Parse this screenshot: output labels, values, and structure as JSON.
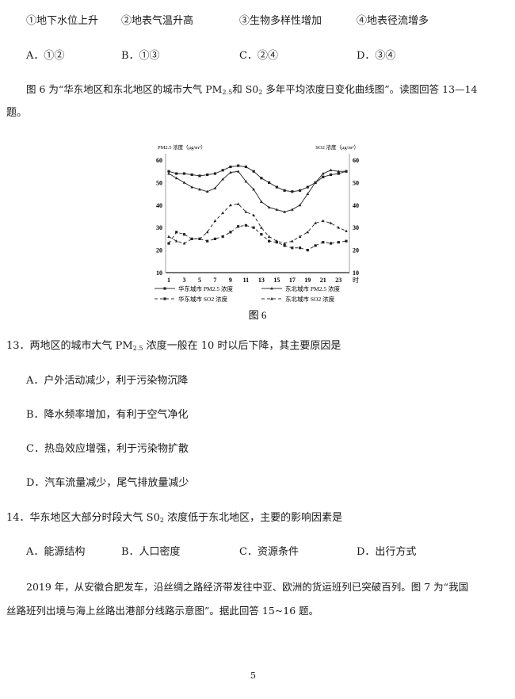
{
  "q12": {
    "items": [
      "①地下水位上升",
      "②地表气温升高",
      "③生物多样性增加",
      "④地表径流增多"
    ],
    "options": [
      "A．①②",
      "B．①③",
      "C．②④",
      "D．③④"
    ]
  },
  "intro": {
    "part1": "图 6 为“华东地区和东北地区的城市大气 PM",
    "sub1": "2.5",
    "part2": "和 S0",
    "sub2": "2",
    "part3": " 多年平均浓度日变化曲线图”。读图回答 13—14",
    "part4": "题。"
  },
  "chart_data": {
    "type": "line",
    "title": "图 6",
    "ylabel_left": "PM2.5 浓度（μg/m³）",
    "ylabel_right": "SO2 浓度（μg/m³）",
    "xlabel": "时",
    "x": [
      1,
      2,
      3,
      4,
      5,
      6,
      7,
      8,
      9,
      10,
      11,
      12,
      13,
      14,
      15,
      16,
      17,
      18,
      19,
      20,
      21,
      22,
      23,
      24
    ],
    "x_ticks": [
      1,
      3,
      5,
      7,
      9,
      11,
      13,
      15,
      17,
      19,
      21,
      23
    ],
    "ylim": [
      10,
      60
    ],
    "y_ticks": [
      10,
      20,
      30,
      40,
      50,
      60
    ],
    "series": [
      {
        "name": "华东城市 PM2.5 浓度",
        "style": "solid",
        "marker": "square",
        "values": [
          55,
          54,
          54,
          53.5,
          53,
          53.5,
          54,
          55.5,
          57,
          57.5,
          57,
          55,
          52,
          50,
          48,
          46.5,
          46,
          46.5,
          48,
          50,
          52.5,
          53.5,
          54,
          55
        ]
      },
      {
        "name": "东北城市 PM2.5 浓度",
        "style": "solid",
        "marker": "triangle",
        "values": [
          54,
          52,
          50,
          48,
          47,
          46,
          47.5,
          51.5,
          54.5,
          55,
          50.5,
          47,
          41.5,
          39,
          38,
          37,
          38,
          40,
          45,
          50,
          54,
          55.5,
          55,
          55
        ]
      },
      {
        "name": "华东城市 SO2 浓度",
        "style": "dashed",
        "marker": "square",
        "values": [
          23,
          28,
          27,
          25,
          25,
          24,
          25,
          26,
          28,
          30.5,
          31,
          30,
          27,
          24,
          23.5,
          22,
          21,
          21,
          20,
          22,
          23.5,
          23,
          23.5,
          24
        ]
      },
      {
        "name": "东北城市 SO2 浓度",
        "style": "dashed",
        "marker": "triangle",
        "values": [
          26,
          24,
          23,
          25,
          25,
          28,
          33,
          36.5,
          40,
          40.5,
          37,
          35.5,
          30,
          26,
          24,
          23,
          24,
          26,
          28,
          32,
          33,
          32,
          30,
          28.5
        ]
      }
    ],
    "legend": "bottom"
  },
  "q13": {
    "stem_a": "13．两地区的城市大气 PM",
    "stem_sub": "2.5",
    "stem_b": " 浓度一般在 10 时以后下降，其主要原因是",
    "options": [
      "A．户外活动减少，利于污染物沉降",
      "B．降水频率增加，有利于空气净化",
      "C．热岛效应增强，利于污染物扩散",
      "D．汽车流量减少，尾气排放量减少"
    ]
  },
  "q14": {
    "stem_a": "14．华东地区大部分时段大气 S0",
    "stem_sub": "2",
    "stem_b": " 浓度低于东北地区，主要的影响因素是",
    "options": [
      "A．能源结构",
      "B．人口密度",
      "C．资源条件",
      "D．出行方式"
    ]
  },
  "para": {
    "line1": "2019 年，从安徽合肥发车，沿丝绸之路经济带发往中亚、欧洲的货运班列已突破百列。图 7 为“我国",
    "line2": "丝路班列出境与海上丝路出港部分线路示意图”。据此回答 15~16 题。"
  },
  "page_number": "5"
}
